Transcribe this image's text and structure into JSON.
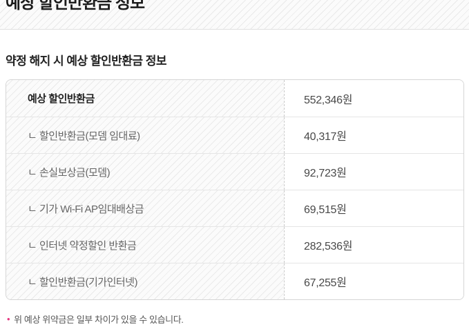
{
  "page": {
    "title": "예상 할인반환금 정보",
    "section_title": "약정 해지 시 예상 할인반환금 정보"
  },
  "table": {
    "rows": [
      {
        "label": "예상 할인반환금",
        "value": "552,346원"
      },
      {
        "label": "ㄴ 할인반환금(모뎀 임대료)",
        "value": "40,317원"
      },
      {
        "label": "ㄴ 손실보상금(모뎀)",
        "value": "92,723원"
      },
      {
        "label": "ㄴ 기가 Wi-Fi AP임대배상금",
        "value": "69,515원"
      },
      {
        "label": "ㄴ 인터넷 약정할인 반환금",
        "value": "282,536원"
      },
      {
        "label": "ㄴ 할인반환금(기가인터넷)",
        "value": "67,255원"
      }
    ]
  },
  "footnote": {
    "bullet": "•",
    "text": "위 예상 위약금은 일부 차이가 있을 수 있습니다."
  },
  "colors": {
    "accent_bullet": "#e6357f",
    "heading_text": "#222222",
    "label_text": "#666666",
    "value_text": "#484848",
    "table_border": "#d5d5d5",
    "row_divider": "#e5e5e5",
    "hatch_line": "#e9e9e9"
  }
}
